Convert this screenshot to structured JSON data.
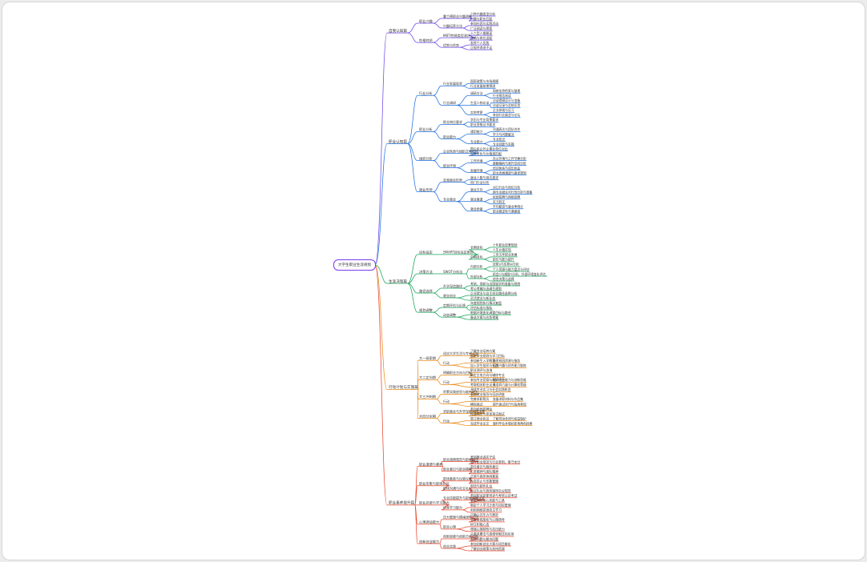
{
  "root_label": "大学生职业生涯规划",
  "colors": {
    "root": "#7c3aed",
    "branches": [
      "#6d48e6",
      "#1f6fe0",
      "#16a35a",
      "#ea8a17",
      "#e8452c"
    ]
  },
  "branches": [
    {
      "label": "自我认知篇",
      "children": [
        {
          "label": "职业兴趣",
          "children": [
            {
              "label": "霍兰德职业兴趣测评",
              "children": [
                {
                  "label": "六种兴趣类型分析"
                },
                {
                  "label": "兴趣与职业匹配"
                }
              ]
            },
            {
              "label": "兴趣培养方法",
              "children": [
                {
                  "label": "参加社团与实践活动"
                },
                {
                  "label": "广泛阅读与探索"
                }
              ]
            }
          ]
        },
        {
          "label": "性格特质",
          "children": [
            {
              "label": "MBTI性格类型测评",
              "children": [
                {
                  "label": "十六型人格解读"
                },
                {
                  "label": "性格与岗位适配"
                }
              ]
            },
            {
              "label": "优势与劣势",
              "children": [
                {
                  "label": "发挥个人优势"
                },
                {
                  "label": "正视并改进不足"
                }
              ]
            }
          ]
        }
      ]
    },
    {
      "label": "职业认知篇",
      "children": [
        {
          "label": "行业分析",
          "children": [
            {
              "label": "行业发展现状",
              "children": [
                {
                  "label": "国家政策与市场规模"
                },
                {
                  "label": "行业发展前景预测"
                }
              ]
            },
            {
              "label": "行业调研",
              "children": [
                {
                  "label": "调研方法",
                  "children": [
                    {
                      "label": "网络信息检索与整理"
                    },
                    {
                      "label": "行业报告阅读"
                    }
                  ]
                },
                {
                  "label": "生涯人物访谈",
                  "children": [
                    {
                      "label": "访谈提纲设计与准备"
                    },
                    {
                      "label": "访谈记录与总结反思"
                    }
                  ]
                },
                {
                  "label": "实地考察",
                  "children": [
                    {
                      "label": "企业参观与见习"
                    },
                    {
                      "label": "参加行业展会与论坛"
                    }
                  ]
                }
              ]
            }
          ]
        },
        {
          "label": "职业分析",
          "children": [
            {
              "label": "职业岗位要求",
              "children": [
                {
                  "label": "学历与专业背景要求"
                },
                {
                  "label": "职业资格证书要求"
                }
              ]
            },
            {
              "label": "职业能力",
              "children": [
                {
                  "label": "通用能力",
                  "children": [
                    {
                      "label": "沟通表达与团队合作"
                    },
                    {
                      "label": "学习与问题解决"
                    }
                  ]
                },
                {
                  "label": "专业能力",
                  "children": [
                    {
                      "label": "专业知识"
                    },
                    {
                      "label": "专业技能与实操"
                    }
                  ]
                }
              ]
            }
          ]
        },
        {
          "label": "组织分析",
          "children": [
            {
              "label": "企业性质与组织文化分析",
              "children": [
                {
                  "label": "国企民企外企事业单位对比"
                },
                {
                  "label": "企业文化与价值观匹配"
                }
              ]
            },
            {
              "label": "职业环境",
              "children": [
                {
                  "label": "工作环境",
                  "children": [
                    {
                      "label": "办公环境与工作节奏分析"
                    },
                    {
                      "label": "薪酬福利与晋升空间分析"
                    }
                  ]
                },
                {
                  "label": "发展环境",
                  "children": [
                    {
                      "label": "培训体系与成长机会"
                    },
                    {
                      "label": "职业发展通道与路径规划"
                    }
                  ]
                }
              ]
            }
          ]
        },
        {
          "label": "就业形势",
          "children": [
            {
              "label": "宏观就业形势",
              "children": [
                {
                  "label": "就业人数与岗位需求"
                },
                {
                  "label": "热门行业分布"
                }
              ]
            },
            {
              "label": "专业就业",
              "children": [
                {
                  "label": "就业方向",
                  "children": [
                    {
                      "label": "对口行业与岗位分析"
                    },
                    {
                      "label": "跨专业就业可行性分析与准备"
                    }
                  ]
                },
                {
                  "label": "就业渠道",
                  "children": [
                    {
                      "label": "校园招聘与网络招聘"
                    },
                    {
                      "label": "实习转正"
                    }
                  ]
                },
                {
                  "label": "就业质量",
                  "children": [
                    {
                      "label": "平均薪资与就业率统计"
                    },
                    {
                      "label": "职业稳定性与满意度"
                    }
                  ]
                }
              ]
            }
          ]
        }
      ]
    },
    {
      "label": "生涯决策篇",
      "children": [
        {
          "label": "目标设定",
          "children": [
            {
              "label": "SMART目标设定原则",
              "children": [
                {
                  "label": "长期目标",
                  "children": [
                    {
                      "label": "十年职业愿景规划"
                    },
                    {
                      "label": "人生价值实现"
                    }
                  ]
                },
                {
                  "label": "中期目标",
                  "children": [
                    {
                      "label": "三至五年职业发展"
                    },
                    {
                      "label": "职位与能力提升"
                    }
                  ]
                }
              ]
            }
          ]
        },
        {
          "label": "决策方法",
          "children": [
            {
              "label": "SWOT分析法",
              "children": [
                {
                  "label": "内部分析",
                  "children": [
                    {
                      "label": "优势S与劣势W分析"
                    },
                    {
                      "label": "个人资源与能力盘点与评估"
                    }
                  ]
                },
                {
                  "label": "外部分析",
                  "children": [
                    {
                      "label": "机会O与威胁T分析，外部环境变化评估"
                    },
                    {
                      "label": "综合决策与选择"
                    }
                  ]
                }
              ]
            }
          ]
        },
        {
          "label": "路径选择",
          "children": [
            {
              "label": "升学深造路径",
              "children": [
                {
                  "label": "考研、保研与出国留学的准备与规划"
                },
                {
                  "label": "考公考编与选调生规划"
                }
              ]
            },
            {
              "label": "就业创业",
              "children": [
                {
                  "label": "企业就业与自主创业路径选择分析"
                },
                {
                  "label": "灵活就业与新业态"
                }
              ]
            }
          ]
        },
        {
          "label": "规划调整",
          "children": [
            {
              "label": "定期评估与反馈",
              "children": [
                {
                  "label": "年度规划执行情况复盘"
                },
                {
                  "label": "评估标准与指标"
                }
              ]
            },
            {
              "label": "动态调整",
              "children": [
                {
                  "label": "根据环境变化调整目标与路径"
                },
                {
                  "label": "备选方案与应急预案"
                }
              ]
            }
          ]
        }
      ]
    },
    {
      "label": "行动计划与实施篇",
      "children": [
        {
          "label": "大一探索期",
          "children": [
            {
              "label": "适应大学生活与专业认知",
              "children": [
                {
                  "label": "了解专业培养方案"
                },
                {
                  "label": "制定学业规划与学习目标"
                }
              ]
            },
            {
              "label": "行动",
              "children": [
                {
                  "label": "参加新生入学教育",
                  "children": [
                    {
                      "label": "熟悉校园资源与服务"
                    }
                  ]
                },
                {
                  "label": "加入学生组织与社团",
                  "children": [
                    {
                      "label": "培养兴趣与综合能力锻炼"
                    }
                  ]
                }
              ]
            }
          ]
        },
        {
          "label": "大二定向期",
          "children": [
            {
              "label": "明确职业方向与目标",
              "children": [
                {
                  "label": "职业测评与咨询"
                },
                {
                  "label": "确定主攻方向与辅修专业"
                }
              ]
            },
            {
              "label": "行动",
              "children": [
                {
                  "label": "参加专业竞赛与科研项目",
                  "children": [
                    {
                      "label": "提升专业能力与创新思维"
                    }
                  ]
                },
                {
                  "label": "考取相关职业证书",
                  "children": [
                    {
                      "label": "英语四六级与计算机等级"
                    }
                  ]
                }
              ]
            }
          ]
        },
        {
          "label": "大三冲刺期",
          "children": [
            {
              "label": "积累实践经验与能力提升",
              "children": [
                {
                  "label": "寻找专业实习与社会实践机会"
                },
                {
                  "label": "参加就业指导与培训讲座"
                }
              ]
            },
            {
              "label": "行动",
              "children": [
                {
                  "label": "完善求职简历",
                  "children": [
                    {
                      "label": "准备求职材料与作品集"
                    }
                  ]
                },
                {
                  "label": "模拟面试",
                  "children": [
                    {
                      "label": "提升面试技巧与临场表现"
                    }
                  ]
                }
              ]
            }
          ]
        },
        {
          "label": "大四分化期",
          "children": [
            {
              "label": "求职就业与升学深造选择决策",
              "children": [
                {
                  "label": "参加校园招聘会"
                },
                {
                  "label": "投递简历与参加笔试面试"
                }
              ]
            },
            {
              "label": "行动",
              "children": [
                {
                  "label": "签订就业协议",
                  "children": [
                    {
                      "label": "了解劳动合同与权益保护"
                    }
                  ]
                },
                {
                  "label": "完成毕业论文",
                  "children": [
                    {
                      "label": "顺利毕业并做好职场角色转换"
                    }
                  ]
                }
              ]
            }
          ]
        }
      ]
    },
    {
      "label": "职业素养提升篇",
      "children": [
        {
          "label": "职业道德与素养",
          "children": [
            {
              "label": "职业道德规范与职业操守",
              "children": [
                {
                  "label": "爱岗敬业诚实守信"
                },
                {
                  "label": "遵守职业规范与行业准则，恪守本分"
                }
              ]
            },
            {
              "label": "职业意识与职业精神",
              "children": [
                {
                  "label": "责任意识与服务意识"
                },
                {
                  "label": "工匠精神与团队精神"
                }
              ]
            }
          ]
        },
        {
          "label": "职业形象与职场礼仪",
          "children": [
            {
              "label": "职场着装与仪容仪表",
              "children": [
                {
                  "label": "正装与商务休闲着装"
                },
                {
                  "label": "仪态举止与形象管理"
                }
              ]
            },
            {
              "label": "职场沟通与社交礼仪",
              "children": [
                {
                  "label": "电话与邮件礼仪"
                },
                {
                  "label": "会议礼仪与商务接待礼仪规范"
                }
              ]
            }
          ]
        },
        {
          "label": "职业技能与学习能力",
          "children": [
            {
              "label": "专业技能提升与职业资格认证",
              "children": [
                {
                  "label": "参加职业技能培训与考核认证考试"
                },
                {
                  "label": "掌握岗位核心技能与工具"
                }
              ]
            },
            {
              "label": "终身学习能力",
              "children": [
                {
                  "label": "制定个人学习计划与目标管理"
                },
                {
                  "label": "利用网络资源自主学习"
                }
              ]
            }
          ]
        },
        {
          "label": "心理调适能力",
          "children": [
            {
              "label": "压力管理与情绪调节方法",
              "children": [
                {
                  "label": "正确认识压力与挫折"
                },
                {
                  "label": "学会自我放松与心理疏导"
                }
              ]
            },
            {
              "label": "职业心理",
              "children": [
                {
                  "label": "树立积极心态"
                },
                {
                  "label": "增强心理韧性与抗压能力"
                }
              ]
            }
          ]
        },
        {
          "label": "创新创业能力",
          "children": [
            {
              "label": "创新思维与创新方法训练",
              "children": [
                {
                  "label": "头脑风暴法与思维导图法的应用"
                },
                {
                  "label": "发现问题与解决问题"
                }
              ]
            },
            {
              "label": "创业实践",
              "children": [
                {
                  "label": "参加创新创业大赛与项目孵化"
                },
                {
                  "label": "了解创业政策与扶持资源"
                }
              ]
            }
          ]
        }
      ]
    }
  ]
}
